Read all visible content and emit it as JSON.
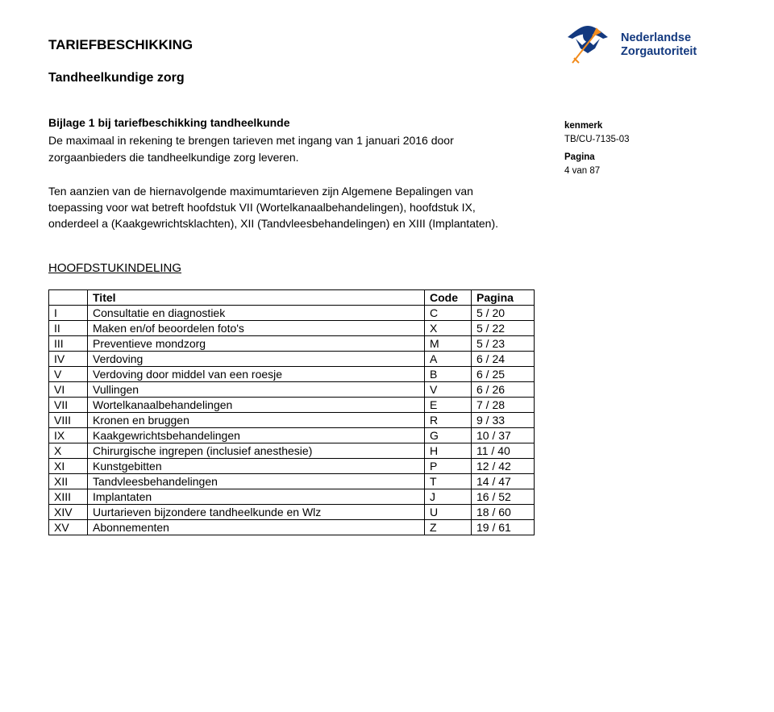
{
  "header": {
    "title": "TARIEFBESCHIKKING",
    "subtitle": "Tandheelkundige zorg"
  },
  "brand": {
    "line1": "Nederlandse",
    "line2": "Zorgautoriteit",
    "icon_color": "#13397f",
    "sword_color": "#f28c1e"
  },
  "meta": {
    "kenmerk_label": "kenmerk",
    "kenmerk_value": "TB/CU-7135-03",
    "pagina_label": "Pagina",
    "pagina_value": "4 van 87"
  },
  "intro": {
    "bold": "Bijlage 1 bij tariefbeschikking tandheelkunde",
    "body": "De maximaal in rekening te brengen tarieven met ingang van 1 januari 2016 door zorgaanbieders die tandheelkundige zorg leveren."
  },
  "para2": "Ten aanzien van de hiernavolgende maximumtarieven zijn Algemene Bepalingen van toepassing voor wat betreft hoofdstuk VII (Wortelkanaalbehandelingen), hoofdstuk IX, onderdeel a (Kaakgewrichtsklachten), XII (Tandvleesbehandelingen) en XIII (Implantaten).",
  "section": "HOOFDSTUKINDELING",
  "table": {
    "headers": {
      "rn": "",
      "title": "Titel",
      "code": "Code",
      "page": "Pagina"
    },
    "rows": [
      {
        "rn": "I",
        "title": "Consultatie en diagnostiek",
        "code": "C",
        "page": "5 / 20"
      },
      {
        "rn": "II",
        "title": "Maken en/of beoordelen foto's",
        "code": "X",
        "page": "5 / 22"
      },
      {
        "rn": "III",
        "title": "Preventieve mondzorg",
        "code": "M",
        "page": "5 / 23"
      },
      {
        "rn": "IV",
        "title": "Verdoving",
        "code": "A",
        "page": "6 / 24"
      },
      {
        "rn": "V",
        "title": "Verdoving door middel van een roesje",
        "code": "B",
        "page": "6 / 25"
      },
      {
        "rn": "VI",
        "title": "Vullingen",
        "code": "V",
        "page": "6 / 26"
      },
      {
        "rn": "VII",
        "title": "Wortelkanaalbehandelingen",
        "code": "E",
        "page": "7 / 28"
      },
      {
        "rn": "VIII",
        "title": "Kronen en bruggen",
        "code": "R",
        "page": "9 / 33"
      },
      {
        "rn": "IX",
        "title": "Kaakgewrichtsbehandelingen",
        "code": "G",
        "page": "10 / 37"
      },
      {
        "rn": "X",
        "title": "Chirurgische ingrepen (inclusief anesthesie)",
        "code": "H",
        "page": "11 / 40"
      },
      {
        "rn": "XI",
        "title": "Kunstgebitten",
        "code": "P",
        "page": "12 / 42"
      },
      {
        "rn": "XII",
        "title": "Tandvleesbehandelingen",
        "code": "T",
        "page": "14 / 47"
      },
      {
        "rn": "XIII",
        "title": "Implantaten",
        "code": "J",
        "page": "16 / 52"
      },
      {
        "rn": "XIV",
        "title": "Uurtarieven bijzondere tandheelkunde en Wlz",
        "code": "U",
        "page": "18 / 60"
      },
      {
        "rn": "XV",
        "title": "Abonnementen",
        "code": "Z",
        "page": "19 / 61"
      }
    ]
  }
}
